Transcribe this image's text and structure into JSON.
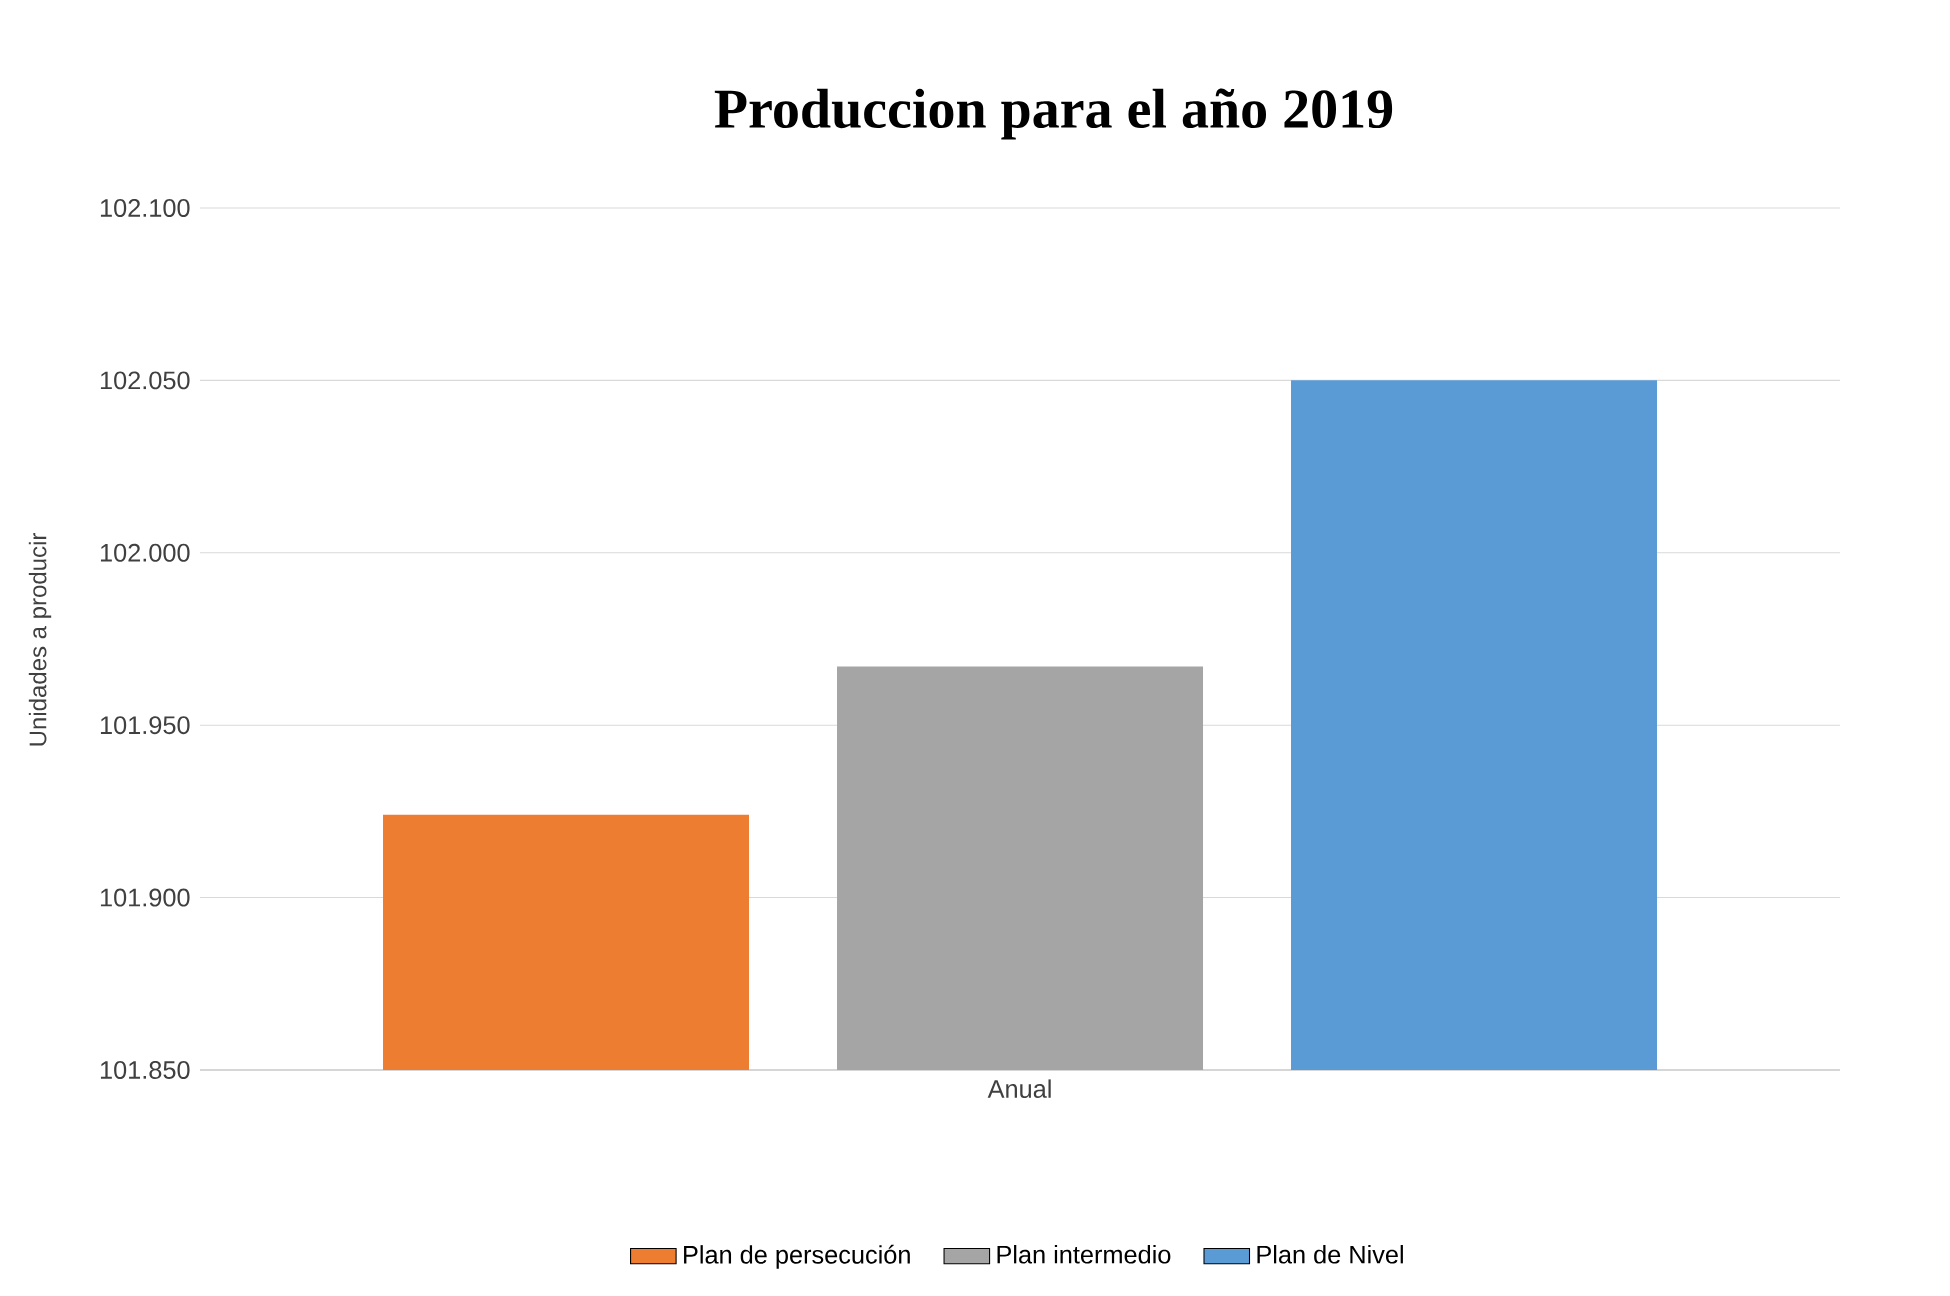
{
  "chart_data": {
    "type": "bar",
    "title": "Produccion para el año 2019",
    "ylabel": "Unidades a producir",
    "categories": [
      "Anual"
    ],
    "series": [
      {
        "name": "Plan de persecución",
        "color": "#ed7d31",
        "values": [
          101924
        ]
      },
      {
        "name": "Plan intermedio",
        "color": "#a5a5a5",
        "values": [
          101967
        ]
      },
      {
        "name": "Plan de Nivel",
        "color": "#5b9bd5",
        "values": [
          102050
        ]
      }
    ],
    "ylim": [
      101850,
      102100
    ],
    "yticks": [
      {
        "value": 101850,
        "label": "101.850"
      },
      {
        "value": 101900,
        "label": "101.900"
      },
      {
        "value": 101950,
        "label": "101.950"
      },
      {
        "value": 102000,
        "label": "102.000"
      },
      {
        "value": 102050,
        "label": "102.050"
      },
      {
        "value": 102100,
        "label": "102.100"
      }
    ],
    "grid": "y",
    "legend": "bottom"
  }
}
